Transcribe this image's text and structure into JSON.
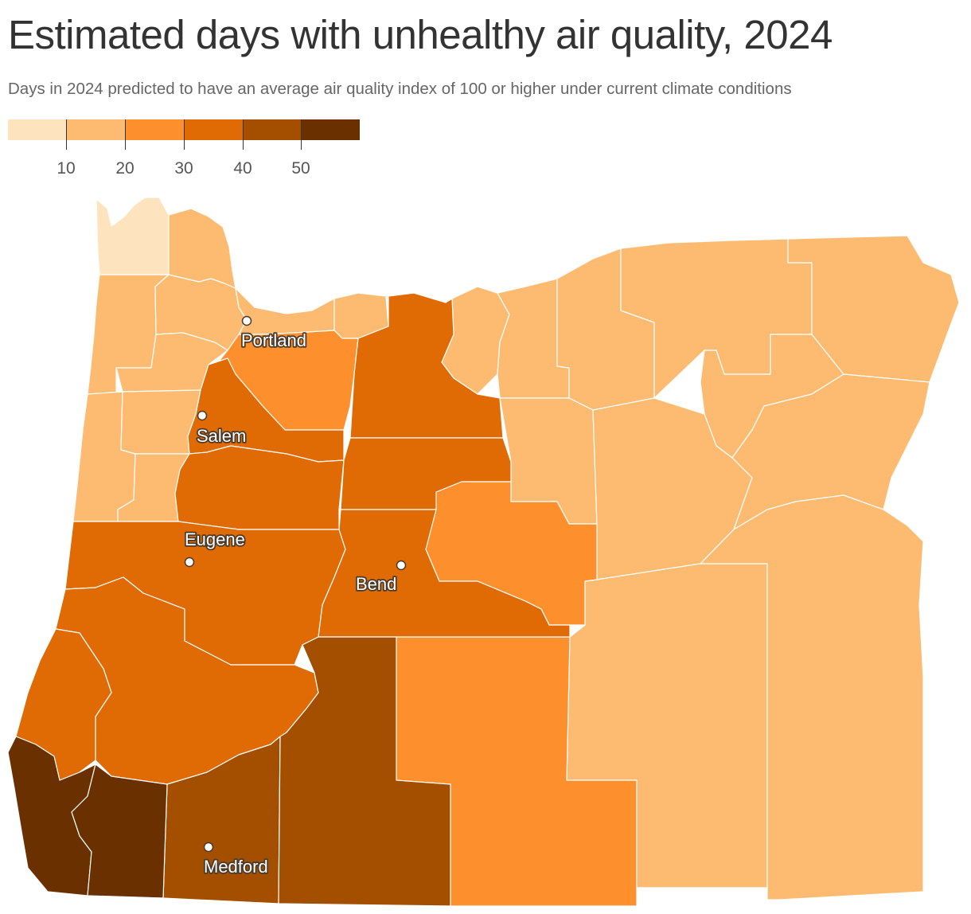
{
  "title": "Estimated days with unhealthy air quality, 2024",
  "subtitle": "Days in 2024 predicted to have an average air quality index of 100 or higher under current climate conditions",
  "legend": {
    "ticks": [
      "10",
      "20",
      "30",
      "40",
      "50"
    ],
    "colors": [
      "#fde4bf",
      "#fdbb72",
      "#fd8f2c",
      "#e06a03",
      "#a44f00",
      "#6b3000"
    ]
  },
  "cities": [
    {
      "name": "Portland",
      "label": "Portland"
    },
    {
      "name": "Salem",
      "label": "Salem"
    },
    {
      "name": "Eugene",
      "label": "Eugene"
    },
    {
      "name": "Bend",
      "label": "Bend"
    },
    {
      "name": "Medford",
      "label": "Medford"
    }
  ]
}
